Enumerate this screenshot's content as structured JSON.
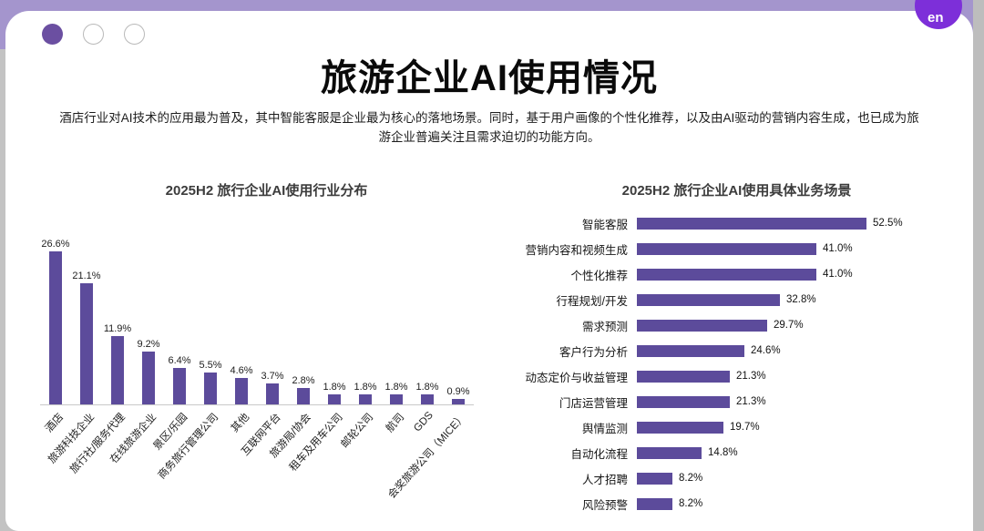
{
  "window": {
    "dots": [
      {
        "state": "active"
      },
      {
        "state": "inactive"
      },
      {
        "state": "inactive"
      }
    ]
  },
  "logo": {
    "text": "en"
  },
  "colors": {
    "bar": "#5C4B9B",
    "topbar": "#A495CD",
    "dot_active": "#6B4FA1",
    "logo": "#7D2FD9"
  },
  "slide": {
    "title": "旅游企业AI使用情况",
    "subtitle": "酒店行业对AI技术的应用最为普及，其中智能客服是企业最为核心的落地场景。同时，基于用户画像的个性化推荐，以及由AI驱动的营销内容生成，也已成为旅游企业普遍关注且需求迫切的功能方向。"
  },
  "chart_data": [
    {
      "type": "bar",
      "orientation": "vertical",
      "title": "2025H2 旅行企业AI使用行业分布",
      "categories": [
        "酒店",
        "旅游科技企业",
        "旅行社/服务代理",
        "在线旅游企业",
        "景区/乐园",
        "商务旅行管理公司",
        "其他",
        "互联网平台",
        "旅游局/协会",
        "租车及用车公司",
        "邮轮公司",
        "航司",
        "GDS",
        "会奖旅游公司（MICE）"
      ],
      "values": [
        26.6,
        21.1,
        11.9,
        9.2,
        6.4,
        5.5,
        4.6,
        3.7,
        2.8,
        1.8,
        1.8,
        1.8,
        1.8,
        0.9
      ],
      "unit": "%",
      "ylim": [
        0,
        28
      ],
      "value_labels": true,
      "category_label_rotation": 45,
      "grid": false,
      "legend": false
    },
    {
      "type": "bar",
      "orientation": "horizontal",
      "title": "2025H2 旅行企业AI使用具体业务场景",
      "categories": [
        "智能客服",
        "营销内容和视频生成",
        "个性化推荐",
        "行程规划/开发",
        "需求预测",
        "客户行为分析",
        "动态定价与收益管理",
        "门店运营管理",
        "舆情监测",
        "自动化流程",
        "人才招聘",
        "风险预警"
      ],
      "values": [
        52.5,
        41.0,
        41.0,
        32.8,
        29.7,
        24.6,
        21.3,
        21.3,
        19.7,
        14.8,
        8.2,
        8.2
      ],
      "unit": "%",
      "xlim": [
        0,
        55
      ],
      "value_labels": true,
      "grid": false,
      "legend": false
    }
  ]
}
